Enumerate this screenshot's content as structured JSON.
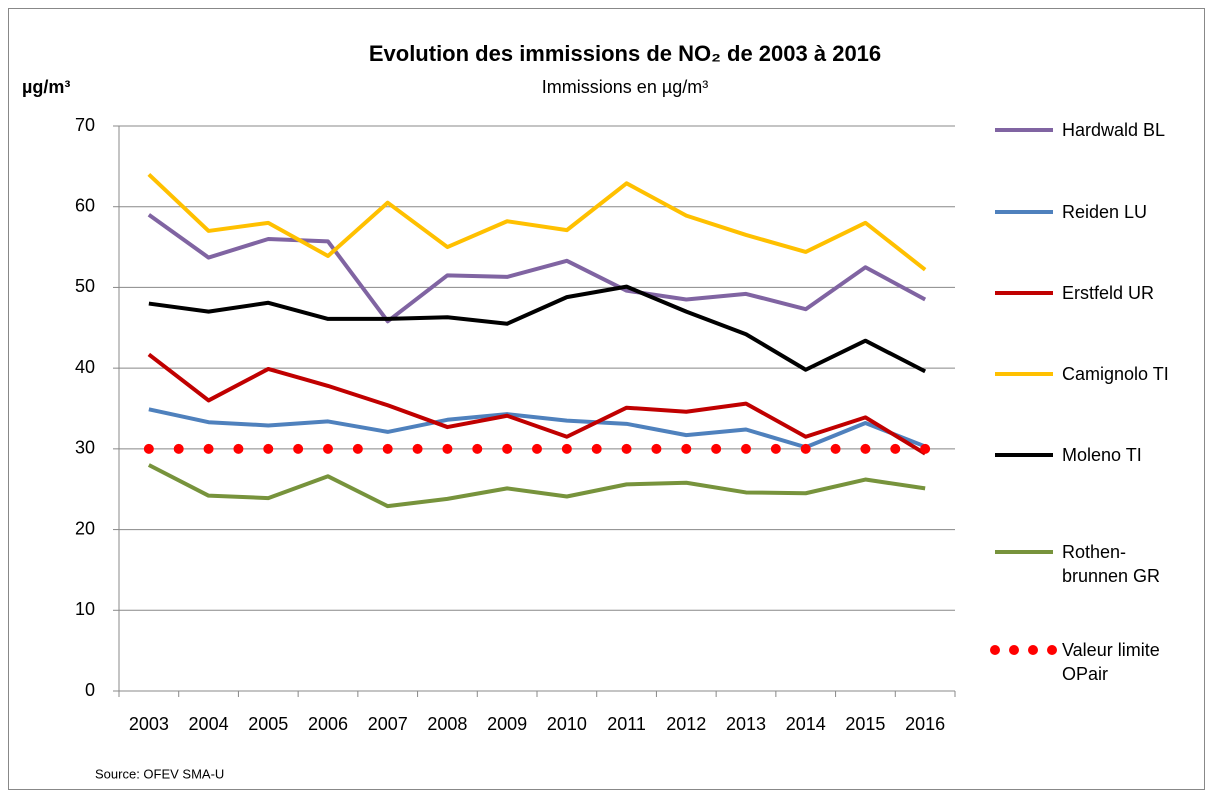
{
  "chart_data": {
    "type": "line",
    "title": "Evolution des immissions de NO₂ de 2003 à 2016",
    "subtitle": "Immissions en µg/m³",
    "y_label": "µg/m³",
    "source": "Source: OFEV  SMA-U",
    "categories": [
      "2003",
      "2004",
      "2005",
      "2006",
      "2007",
      "2008",
      "2009",
      "2010",
      "2011",
      "2012",
      "2013",
      "2014",
      "2015",
      "2016"
    ],
    "ylim": [
      0,
      70
    ],
    "yticks": [
      0,
      10,
      20,
      30,
      40,
      50,
      60,
      70
    ],
    "grid": true,
    "legend": "right",
    "series": [
      {
        "name": "Hardwald BL",
        "color": "#8064a2",
        "style": "solid",
        "values": [
          59,
          53.7,
          56,
          55.7,
          45.8,
          51.5,
          51.3,
          53.3,
          49.6,
          48.5,
          49.2,
          47.3,
          52.5,
          48.5
        ]
      },
      {
        "name": "Reiden LU",
        "color": "#4f81bd",
        "style": "solid",
        "values": [
          34.9,
          33.3,
          32.9,
          33.4,
          32.1,
          33.6,
          34.3,
          33.5,
          33.1,
          31.7,
          32.4,
          30.2,
          33.2,
          30.3
        ]
      },
      {
        "name": "Erstfeld UR",
        "color": "#c00000",
        "style": "solid",
        "values": [
          41.7,
          36,
          39.9,
          37.8,
          35.4,
          32.7,
          34.1,
          31.5,
          35.1,
          34.6,
          35.6,
          31.5,
          33.9,
          29.4
        ]
      },
      {
        "name": "Camignolo TI",
        "color": "#ffc000",
        "style": "solid",
        "values": [
          64,
          57,
          58,
          53.9,
          60.5,
          55,
          58.2,
          57.1,
          62.9,
          58.9,
          56.5,
          54.4,
          58,
          52.2
        ]
      },
      {
        "name": "Moleno TI",
        "color": "#000000",
        "style": "solid",
        "values": [
          48,
          47,
          48.1,
          46.1,
          46.1,
          46.3,
          45.5,
          48.8,
          50.1,
          47,
          44.2,
          39.8,
          43.4,
          39.6
        ]
      },
      {
        "name": "Rothen-\nbrunnen GR",
        "color": "#77933c",
        "style": "solid",
        "values": [
          28,
          24.2,
          23.9,
          26.6,
          22.9,
          23.8,
          25.1,
          24.1,
          25.6,
          25.8,
          24.6,
          24.5,
          26.2,
          25.1
        ]
      },
      {
        "name": "Valeur limite\nOPair",
        "color": "#ff0000",
        "style": "dotted",
        "values": [
          30,
          30,
          30,
          30,
          30,
          30,
          30,
          30,
          30,
          30,
          30,
          30,
          30,
          30
        ]
      }
    ]
  }
}
